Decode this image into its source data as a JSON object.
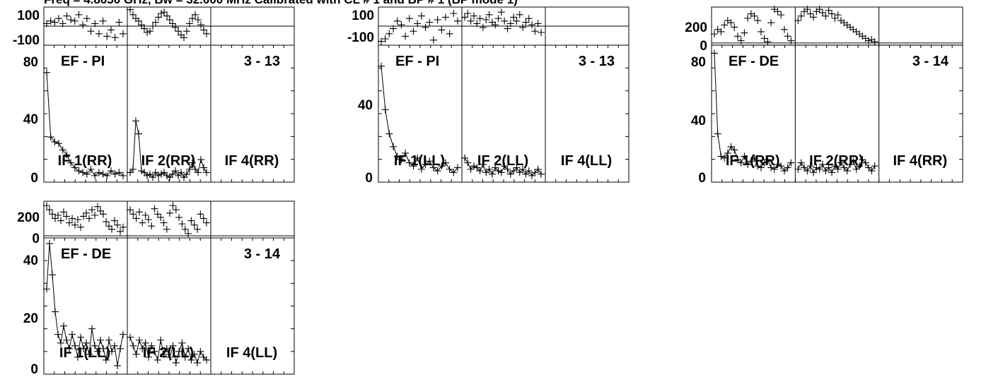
{
  "header": {
    "text": "Freq = 4.8050 GHz, Bw = 32.000 MHz Calibrated with CL # 1 and BP # 1 (BP mode 1)"
  },
  "chart_data": [
    {
      "type": "line",
      "baseline": "EF - PI",
      "channel_label": "3 - 13",
      "phase_panel": {
        "ylim": [
          -150,
          150
        ],
        "tick_labels": [
          "100",
          "-100"
        ],
        "reference_line": 0
      },
      "amp_panel": {
        "ylim": [
          0,
          85
        ],
        "tick_labels": [
          "80",
          "40",
          "0"
        ]
      },
      "if_labels": [
        "IF 1(RR)",
        "IF 2(RR)",
        "IF 4(RR)"
      ],
      "if_spans": [
        [
          0,
          1
        ],
        [
          1,
          2
        ],
        [
          2,
          3
        ]
      ],
      "series": [
        {
          "if_index": 0,
          "amplitude": [
            68,
            28,
            25,
            24,
            20,
            17,
            12,
            9,
            7,
            6,
            5,
            8,
            4,
            6,
            5,
            4,
            7,
            5,
            6,
            4
          ],
          "phase": [
            20,
            40,
            30,
            60,
            20,
            80,
            50,
            40,
            90,
            10,
            60,
            -40,
            20,
            -60,
            40,
            -80,
            -30,
            -90,
            30,
            -60
          ]
        },
        {
          "if_index": 1,
          "amplitude": [
            6,
            8,
            38,
            30,
            7,
            6,
            4,
            5,
            3,
            6,
            4,
            5,
            6,
            4,
            3,
            5,
            7,
            4,
            6,
            3,
            5,
            8,
            12,
            8,
            6,
            14,
            9,
            6
          ],
          "phase": [
            130,
            90,
            60,
            40,
            10,
            -20,
            -50,
            -40,
            0,
            30,
            70,
            100,
            110,
            80,
            50,
            20,
            -10,
            -40,
            -70,
            -90,
            -40,
            20,
            60,
            90,
            50,
            10,
            -30,
            -60
          ]
        }
      ]
    },
    {
      "type": "line",
      "baseline": "EF - PI",
      "channel_label": "3 - 13",
      "phase_panel": {
        "ylim": [
          -150,
          150
        ],
        "tick_labels": [
          "100",
          "-100"
        ],
        "reference_line": 0
      },
      "amp_panel": {
        "ylim": [
          0,
          85
        ],
        "tick_labels": [
          "40",
          "0"
        ]
      },
      "if_labels": [
        "IF 1(LL)",
        "IF 2(LL)",
        "IF 4(LL)"
      ],
      "if_spans": [
        [
          0,
          1
        ],
        [
          1,
          2
        ],
        [
          2,
          3
        ]
      ],
      "series": [
        {
          "if_index": 0,
          "amplitude": [
            72,
            45,
            30,
            22,
            16,
            14,
            18,
            12,
            10,
            15,
            8,
            11,
            13,
            9,
            7,
            10,
            12,
            8,
            6,
            9
          ],
          "phase": [
            -120,
            -100,
            -60,
            -20,
            40,
            10,
            -80,
            60,
            -40,
            20,
            80,
            -10,
            30,
            -110,
            50,
            -30,
            70,
            -60,
            100,
            40
          ]
        },
        {
          "if_index": 1,
          "amplitude": [
            15,
            12,
            8,
            10,
            9,
            7,
            11,
            6,
            8,
            5,
            9,
            7,
            6,
            10,
            8,
            5,
            7,
            9,
            6,
            8,
            5,
            7,
            4,
            6,
            8,
            5
          ],
          "phase": [
            70,
            100,
            40,
            80,
            20,
            60,
            -10,
            50,
            90,
            30,
            10,
            60,
            110,
            40,
            -20,
            20,
            70,
            40,
            90,
            -10,
            30,
            60,
            10,
            -40,
            20,
            -50
          ]
        }
      ]
    },
    {
      "type": "line",
      "baseline": "EF - DE",
      "channel_label": "3 - 14",
      "phase_panel": {
        "ylim": [
          -20,
          320
        ],
        "tick_labels": [
          "200",
          "0"
        ],
        "reference_line": 0
      },
      "amp_panel": {
        "ylim": [
          0,
          85
        ],
        "tick_labels": [
          "80",
          "40",
          "0"
        ]
      },
      "if_labels": [
        "IF 1(RR)",
        "IF 2(RR)",
        "IF 4(RR)"
      ],
      "if_spans": [
        [
          0,
          1
        ],
        [
          1,
          2
        ],
        [
          2,
          3
        ]
      ],
      "series": [
        {
          "if_index": 0,
          "amplitude": [
            80,
            30,
            16,
            15,
            18,
            22,
            20,
            14,
            12,
            16,
            11,
            13,
            15,
            10,
            9,
            12,
            14,
            9,
            8,
            11,
            10,
            7,
            9,
            12
          ],
          "phase": [
            80,
            120,
            100,
            160,
            200,
            180,
            140,
            60,
            20,
            90,
            220,
            260,
            240,
            200,
            100,
            40,
            10,
            180,
            300,
            280,
            250,
            120,
            60,
            20
          ]
        },
        {
          "if_index": 1,
          "amplitude": [
            8,
            12,
            9,
            7,
            10,
            6,
            9,
            8,
            11,
            7,
            9,
            6,
            10,
            8,
            12,
            9,
            7,
            11,
            13,
            8,
            10,
            14,
            12,
            9,
            7,
            10
          ],
          "phase": [
            200,
            240,
            280,
            300,
            260,
            230,
            280,
            300,
            270,
            240,
            290,
            260,
            220,
            250,
            200,
            180,
            160,
            140,
            120,
            100,
            80,
            60,
            40,
            20,
            30,
            10
          ]
        }
      ]
    },
    {
      "type": "line",
      "baseline": "EF - DE",
      "channel_label": "3 - 14",
      "phase_panel": {
        "ylim": [
          -20,
          320
        ],
        "tick_labels": [
          "200",
          "0"
        ],
        "reference_line": 0
      },
      "amp_panel": {
        "ylim": [
          0,
          48
        ],
        "tick_labels": [
          "40",
          "20",
          "0"
        ]
      },
      "if_labels": [
        "IF 1(LL)",
        "IF 2(LL)",
        "IF 4(LL)"
      ],
      "if_spans": [
        [
          0,
          1
        ],
        [
          1,
          2
        ],
        [
          2,
          3
        ]
      ],
      "series": [
        {
          "if_index": 0,
          "amplitude": [
            30,
            46,
            35,
            22,
            14,
            11,
            17,
            12,
            9,
            14,
            10,
            6,
            13,
            9,
            11,
            7,
            16,
            10,
            8,
            12,
            9,
            5,
            12,
            8,
            10,
            3,
            9,
            14
          ],
          "phase": [
            280,
            240,
            200,
            160,
            190,
            140,
            220,
            180,
            120,
            160,
            100,
            150,
            80,
            180,
            210,
            160,
            240,
            190,
            270,
            230,
            200,
            130,
            90,
            60,
            140,
            100,
            40,
            80
          ]
        },
        {
          "if_index": 1,
          "amplitude": [
            13,
            10,
            7,
            12,
            9,
            11,
            6,
            10,
            8,
            5,
            12,
            7,
            9,
            6,
            10,
            4,
            8,
            11,
            6,
            9,
            5,
            7,
            4,
            8,
            6,
            5
          ],
          "phase": [
            240,
            200,
            160,
            220,
            120,
            190,
            150,
            90,
            250,
            200,
            170,
            120,
            60,
            210,
            280,
            240,
            170,
            110,
            60,
            20,
            140,
            100,
            60,
            200,
            160,
            120
          ]
        }
      ]
    }
  ]
}
